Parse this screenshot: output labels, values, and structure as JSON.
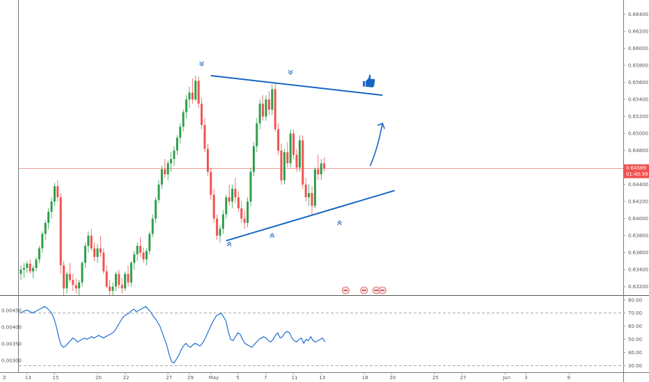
{
  "colors": {
    "up": "#26a69a",
    "up_fill": "#2e9e4a",
    "down": "#ef5350",
    "line": "#1565c0",
    "osc": "#1e6fd0",
    "grid": "#f0f0f0",
    "price_line": "#f28b8b",
    "last_tag": "#ef5350"
  },
  "price_axis": {
    "labels": [
      "0.66400",
      "0.66200",
      "0.66000",
      "0.65800",
      "0.65600",
      "0.65400",
      "0.65200",
      "0.65000",
      "0.64800",
      "0.64600",
      "0.64400",
      "0.64200",
      "0.64000",
      "0.63800",
      "0.63600",
      "0.63400",
      "0.63200"
    ],
    "last_price": "0.64589",
    "countdown": "01:40:39"
  },
  "osc_axis": {
    "right_labels": [
      "80.00",
      "70.00",
      "60.00",
      "50.00",
      "40.00",
      "30.00"
    ],
    "left_labels": [
      "0.00450",
      "0.00400",
      "0.00350",
      "0.00300"
    ]
  },
  "time_axis": {
    "labels": [
      {
        "text": "13",
        "bar": 2
      },
      {
        "text": "15",
        "bar": 11
      },
      {
        "text": "20",
        "bar": 25
      },
      {
        "text": "22",
        "bar": 34
      },
      {
        "text": "27",
        "bar": 48
      },
      {
        "text": "29",
        "bar": 55
      },
      {
        "text": "May",
        "bar": 62
      },
      {
        "text": "5",
        "bar": 71
      },
      {
        "text": "7",
        "bar": 80
      },
      {
        "text": "11",
        "bar": 89
      },
      {
        "text": "13",
        "bar": 98
      },
      {
        "text": "18",
        "bar": 112
      },
      {
        "text": "20",
        "bar": 121
      },
      {
        "text": "25",
        "bar": 135
      },
      {
        "text": "27",
        "bar": 144
      },
      {
        "text": "Jun",
        "bar": 158
      },
      {
        "text": "3",
        "bar": 165
      },
      {
        "text": "8",
        "bar": 179
      }
    ],
    "z_label": "Z"
  },
  "chart_data": {
    "type": "candlestick",
    "ylim": [
      0.631,
      0.6652
    ],
    "candles": [
      [
        0.6335,
        0.6345,
        0.6328,
        0.634
      ],
      [
        0.634,
        0.6348,
        0.633,
        0.6342
      ],
      [
        0.6342,
        0.635,
        0.6336,
        0.6347
      ],
      [
        0.6347,
        0.6352,
        0.6335,
        0.6338
      ],
      [
        0.6338,
        0.6345,
        0.633,
        0.6342
      ],
      [
        0.6342,
        0.6355,
        0.6338,
        0.6352
      ],
      [
        0.6352,
        0.6368,
        0.6348,
        0.6365
      ],
      [
        0.6365,
        0.6385,
        0.636,
        0.6382
      ],
      [
        0.6382,
        0.6398,
        0.6375,
        0.6395
      ],
      [
        0.6395,
        0.6412,
        0.6388,
        0.6408
      ],
      [
        0.6408,
        0.6425,
        0.64,
        0.642
      ],
      [
        0.642,
        0.6442,
        0.6415,
        0.6438
      ],
      [
        0.6438,
        0.6445,
        0.642,
        0.6425
      ],
      [
        0.6425,
        0.643,
        0.6335,
        0.6345
      ],
      [
        0.6345,
        0.635,
        0.631,
        0.6318
      ],
      [
        0.6318,
        0.6338,
        0.6312,
        0.6335
      ],
      [
        0.6335,
        0.6348,
        0.6325,
        0.6328
      ],
      [
        0.6328,
        0.6335,
        0.6315,
        0.6322
      ],
      [
        0.6322,
        0.633,
        0.6312,
        0.6318
      ],
      [
        0.6318,
        0.6328,
        0.631,
        0.6325
      ],
      [
        0.6325,
        0.635,
        0.632,
        0.6348
      ],
      [
        0.6348,
        0.6372,
        0.6342,
        0.6368
      ],
      [
        0.6368,
        0.6385,
        0.636,
        0.638
      ],
      [
        0.638,
        0.6388,
        0.6362,
        0.6365
      ],
      [
        0.6365,
        0.6372,
        0.635,
        0.6355
      ],
      [
        0.6355,
        0.637,
        0.6348,
        0.6365
      ],
      [
        0.6365,
        0.638,
        0.6355,
        0.636
      ],
      [
        0.636,
        0.6365,
        0.6335,
        0.6338
      ],
      [
        0.6338,
        0.6345,
        0.6318,
        0.632
      ],
      [
        0.632,
        0.6328,
        0.631,
        0.6315
      ],
      [
        0.6315,
        0.6325,
        0.631,
        0.632
      ],
      [
        0.632,
        0.6338,
        0.6315,
        0.6335
      ],
      [
        0.6335,
        0.634,
        0.6318,
        0.6322
      ],
      [
        0.6322,
        0.633,
        0.6312,
        0.6318
      ],
      [
        0.6318,
        0.6338,
        0.6315,
        0.6335
      ],
      [
        0.6335,
        0.6345,
        0.632,
        0.6325
      ],
      [
        0.6325,
        0.635,
        0.632,
        0.6348
      ],
      [
        0.6348,
        0.6362,
        0.634,
        0.6358
      ],
      [
        0.6358,
        0.6372,
        0.635,
        0.6368
      ],
      [
        0.6368,
        0.6378,
        0.6355,
        0.636
      ],
      [
        0.636,
        0.6366,
        0.6348,
        0.6352
      ],
      [
        0.6352,
        0.6365,
        0.6345,
        0.6362
      ],
      [
        0.6362,
        0.6385,
        0.6358,
        0.6382
      ],
      [
        0.6382,
        0.6405,
        0.6378,
        0.64
      ],
      [
        0.64,
        0.6425,
        0.6395,
        0.6422
      ],
      [
        0.6422,
        0.6445,
        0.6418,
        0.644
      ],
      [
        0.644,
        0.6462,
        0.6435,
        0.6458
      ],
      [
        0.6458,
        0.647,
        0.6448,
        0.6452
      ],
      [
        0.6452,
        0.6468,
        0.6445,
        0.6465
      ],
      [
        0.6465,
        0.6478,
        0.6455,
        0.647
      ],
      [
        0.647,
        0.6485,
        0.6462,
        0.648
      ],
      [
        0.648,
        0.6498,
        0.6475,
        0.6495
      ],
      [
        0.6495,
        0.6512,
        0.6488,
        0.6508
      ],
      [
        0.6508,
        0.6528,
        0.6502,
        0.6525
      ],
      [
        0.6525,
        0.6545,
        0.6518,
        0.654
      ],
      [
        0.654,
        0.6555,
        0.653,
        0.6548
      ],
      [
        0.6548,
        0.6565,
        0.6535,
        0.654
      ],
      [
        0.654,
        0.6568,
        0.6538,
        0.6562
      ],
      [
        0.6562,
        0.6567,
        0.653,
        0.6535
      ],
      [
        0.6535,
        0.6542,
        0.6505,
        0.651
      ],
      [
        0.651,
        0.6518,
        0.6478,
        0.6482
      ],
      [
        0.6482,
        0.6488,
        0.645,
        0.6455
      ],
      [
        0.6455,
        0.646,
        0.6422,
        0.6428
      ],
      [
        0.6428,
        0.6435,
        0.6395,
        0.64
      ],
      [
        0.64,
        0.6405,
        0.6375,
        0.638
      ],
      [
        0.638,
        0.6392,
        0.6372,
        0.6388
      ],
      [
        0.6388,
        0.641,
        0.6382,
        0.6405
      ],
      [
        0.6405,
        0.6428,
        0.64,
        0.6425
      ],
      [
        0.6425,
        0.644,
        0.6415,
        0.642
      ],
      [
        0.642,
        0.644,
        0.6412,
        0.6435
      ],
      [
        0.6435,
        0.6448,
        0.6418,
        0.6425
      ],
      [
        0.6425,
        0.6432,
        0.6408,
        0.6412
      ],
      [
        0.6412,
        0.642,
        0.6395,
        0.64
      ],
      [
        0.64,
        0.641,
        0.6388,
        0.6395
      ],
      [
        0.6395,
        0.6425,
        0.639,
        0.642
      ],
      [
        0.642,
        0.646,
        0.6415,
        0.6455
      ],
      [
        0.6455,
        0.649,
        0.645,
        0.6485
      ],
      [
        0.6485,
        0.6518,
        0.6478,
        0.6512
      ],
      [
        0.6512,
        0.654,
        0.6505,
        0.6535
      ],
      [
        0.6535,
        0.6545,
        0.6515,
        0.652
      ],
      [
        0.652,
        0.6545,
        0.6515,
        0.654
      ],
      [
        0.654,
        0.655,
        0.6522,
        0.6528
      ],
      [
        0.6528,
        0.6558,
        0.6522,
        0.6552
      ],
      [
        0.6552,
        0.656,
        0.6502,
        0.6505
      ],
      [
        0.6505,
        0.6512,
        0.6475,
        0.648
      ],
      [
        0.648,
        0.6488,
        0.644,
        0.6445
      ],
      [
        0.6445,
        0.6482,
        0.644,
        0.6478
      ],
      [
        0.6478,
        0.649,
        0.646,
        0.6465
      ],
      [
        0.6465,
        0.6505,
        0.646,
        0.65
      ],
      [
        0.65,
        0.6505,
        0.647,
        0.6475
      ],
      [
        0.6475,
        0.6482,
        0.6455,
        0.646
      ],
      [
        0.646,
        0.6498,
        0.6455,
        0.6492
      ],
      [
        0.6492,
        0.6498,
        0.6435,
        0.644
      ],
      [
        0.644,
        0.6448,
        0.642,
        0.6425
      ],
      [
        0.6425,
        0.644,
        0.6415,
        0.643
      ],
      [
        0.643,
        0.6438,
        0.6405,
        0.6415
      ],
      [
        0.6415,
        0.646,
        0.6412,
        0.6458
      ],
      [
        0.6458,
        0.6475,
        0.6445,
        0.6452
      ],
      [
        0.6452,
        0.647,
        0.6445,
        0.6465
      ],
      [
        0.6465,
        0.6472,
        0.6455,
        0.6459
      ]
    ]
  },
  "osc_data": {
    "ylim": [
      25,
      82
    ],
    "dashed_levels": [
      70,
      30
    ],
    "values": [
      70,
      71,
      72,
      72,
      71,
      70,
      71,
      72,
      73,
      74,
      75,
      74,
      72,
      70,
      66,
      60,
      52,
      46,
      44,
      45,
      47,
      49,
      51,
      50,
      48,
      49,
      50,
      51,
      50,
      51,
      52,
      51,
      52,
      53,
      52,
      51,
      52,
      53,
      54,
      55,
      57,
      60,
      63,
      66,
      68,
      69,
      70,
      72,
      73,
      71,
      72,
      73,
      74,
      75,
      73,
      71,
      68,
      66,
      63,
      60,
      55,
      50,
      45,
      38,
      33,
      32,
      35,
      38,
      42,
      45,
      47,
      45,
      44,
      46,
      47,
      46,
      45,
      47,
      50,
      54,
      58,
      62,
      65,
      68,
      69,
      70,
      67,
      64,
      56,
      50,
      49,
      52,
      55,
      54,
      50,
      47,
      46,
      45,
      44,
      46,
      48,
      50,
      51,
      52,
      51,
      49,
      48,
      50,
      53,
      55,
      51,
      52,
      55,
      56,
      55,
      51,
      49,
      48,
      50,
      51,
      47,
      50,
      49,
      52,
      49,
      48,
      49,
      50,
      51,
      48
    ],
    "last_index": 139
  },
  "drawings": {
    "upper_line": {
      "b1": 62,
      "p1": 0.6568,
      "b2": 118,
      "p2": 0.6545
    },
    "lower_line": {
      "b1": 67,
      "p1": 0.6374,
      "b2": 122,
      "p2": 0.6433
    },
    "arrow": {
      "b1": 114,
      "p1": 0.6462,
      "b2": 118,
      "p2": 0.6512
    },
    "thumbs_up": {
      "bar": 113,
      "price": 0.656
    },
    "markers_down": [
      {
        "bar": 59,
        "price": 0.6582
      },
      {
        "bar": 88,
        "price": 0.6572
      }
    ],
    "markers_up": [
      {
        "bar": 68,
        "price": 0.637
      },
      {
        "bar": 82,
        "price": 0.638
      },
      {
        "bar": 104,
        "price": 0.6395
      }
    ],
    "flags": [
      {
        "bar": 106
      },
      {
        "bar": 112
      },
      {
        "bar": 116
      },
      {
        "bar": 118
      }
    ]
  }
}
